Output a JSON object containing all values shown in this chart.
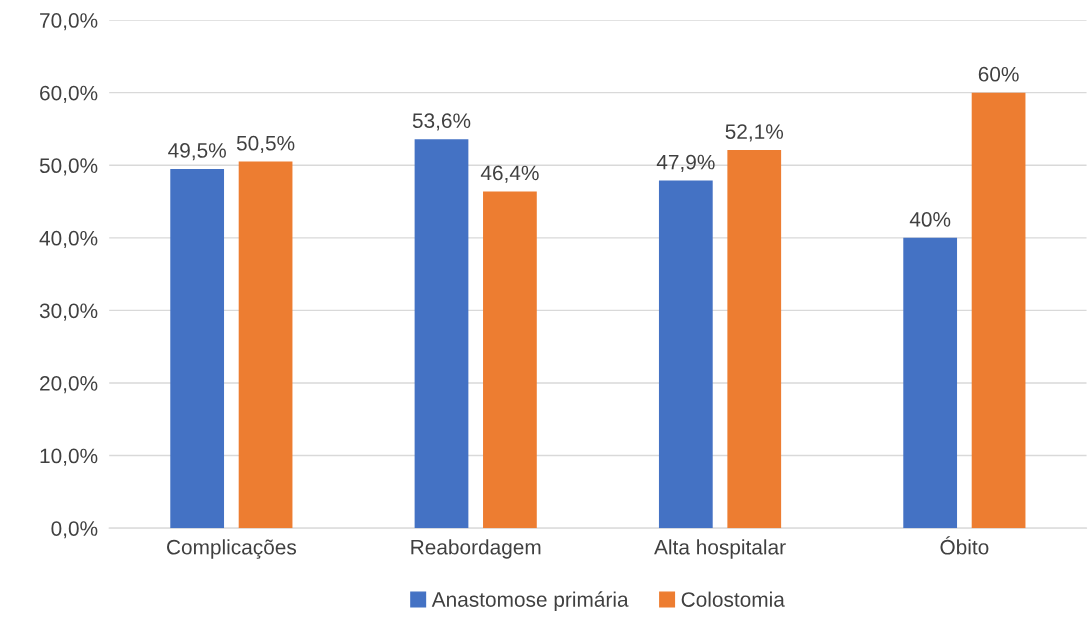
{
  "chart_data": {
    "type": "bar",
    "categories": [
      "Complicações",
      "Reabordagem",
      "Alta hospitalar",
      "Óbito"
    ],
    "series": [
      {
        "name": "Anastomose primária",
        "color": "#4472c4",
        "values": [
          49.5,
          53.6,
          47.9,
          40
        ],
        "value_labels": [
          "49,5%",
          "53,6%",
          "47,9%",
          "40%"
        ]
      },
      {
        "name": "Colostomia",
        "color": "#ed7d31",
        "values": [
          50.5,
          46.4,
          52.1,
          60
        ],
        "value_labels": [
          "50,5%",
          "46,4%",
          "52,1%",
          "60%"
        ]
      }
    ],
    "ylim": [
      0,
      70
    ],
    "yticks": [
      {
        "value": 0,
        "label": "0,0%"
      },
      {
        "value": 10,
        "label": "10,0%"
      },
      {
        "value": 20,
        "label": "20,0%"
      },
      {
        "value": 30,
        "label": "30,0%"
      },
      {
        "value": 40,
        "label": "40,0%"
      },
      {
        "value": 50,
        "label": "50,0%"
      },
      {
        "value": 60,
        "label": "60,0%"
      },
      {
        "value": 70,
        "label": "70,0%"
      }
    ],
    "grid": "y",
    "legend": "bottom"
  }
}
